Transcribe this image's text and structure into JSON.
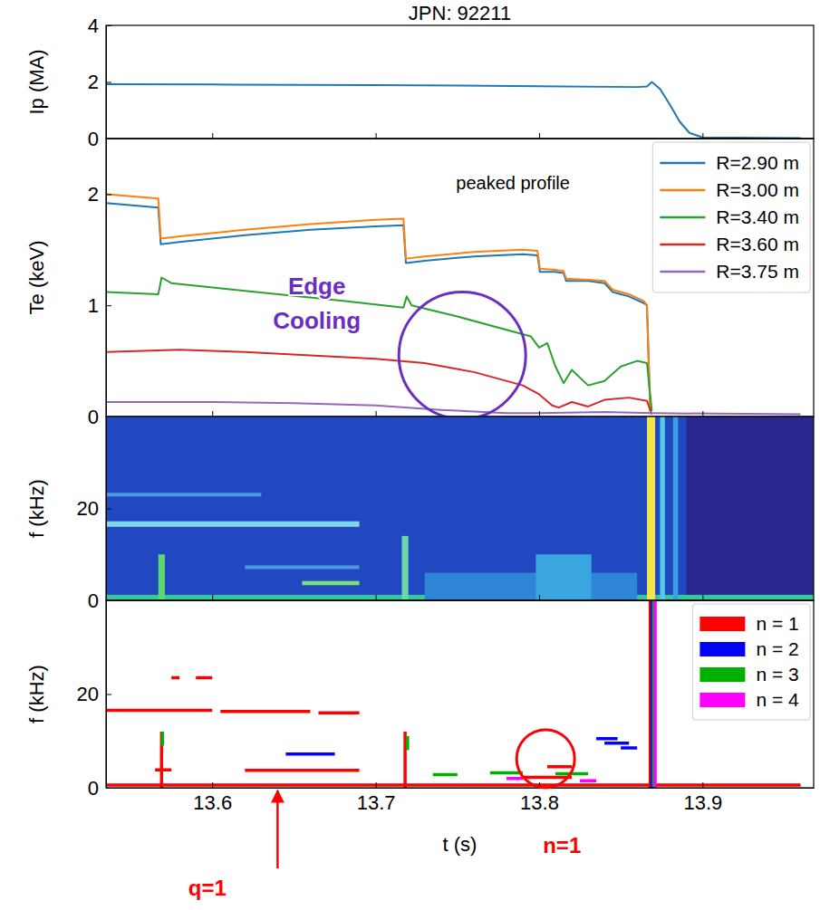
{
  "chart_data": [
    {
      "type": "line",
      "title": "JPN: 92211",
      "y_label": "Ip (MA)",
      "xlim": [
        13.535,
        13.968
      ],
      "ylim": [
        0,
        4
      ],
      "xticks": [
        13.6,
        13.7,
        13.8,
        13.9
      ],
      "yticks": [
        0,
        2,
        4
      ],
      "tick_labels": "y",
      "series": [
        {
          "color": "#1f77b4",
          "x": [
            13.535,
            13.6,
            13.7,
            13.8,
            13.86,
            13.866,
            13.869,
            13.874,
            13.88,
            13.886,
            13.892,
            13.9,
            13.96
          ],
          "values": [
            1.92,
            1.91,
            1.89,
            1.85,
            1.82,
            1.84,
            2.0,
            1.75,
            1.2,
            0.6,
            0.2,
            0.04,
            0.02
          ]
        }
      ]
    },
    {
      "type": "line",
      "y_label": "Te (keV)",
      "xlim": [
        13.535,
        13.968
      ],
      "ylim": [
        0,
        2.5
      ],
      "xticks": [
        13.6,
        13.7,
        13.8,
        13.9
      ],
      "yticks": [
        0,
        1,
        2
      ],
      "tick_labels": "y",
      "legend": "upper right",
      "series": [
        {
          "name": "R=2.90 m",
          "color": "#1f77b4",
          "x": [
            13.535,
            13.567,
            13.5685,
            13.58,
            13.62,
            13.66,
            13.7,
            13.717,
            13.7185,
            13.73,
            13.76,
            13.79,
            13.799,
            13.8005,
            13.81,
            13.815,
            13.8165,
            13.83,
            13.84,
            13.845,
            13.85,
            13.855,
            13.864,
            13.866,
            13.868
          ],
          "values": [
            1.92,
            1.88,
            1.55,
            1.57,
            1.63,
            1.68,
            1.71,
            1.72,
            1.38,
            1.4,
            1.44,
            1.46,
            1.45,
            1.3,
            1.3,
            1.29,
            1.22,
            1.22,
            1.2,
            1.12,
            1.1,
            1.08,
            1.02,
            1.0,
            0.05
          ]
        },
        {
          "name": "R=3.00 m",
          "color": "#ff7f0e",
          "x": [
            13.535,
            13.567,
            13.5685,
            13.58,
            13.62,
            13.66,
            13.7,
            13.717,
            13.7185,
            13.73,
            13.76,
            13.79,
            13.799,
            13.8005,
            13.81,
            13.815,
            13.8165,
            13.83,
            13.84,
            13.845,
            13.85,
            13.855,
            13.864,
            13.866,
            13.868
          ],
          "values": [
            2.0,
            1.96,
            1.6,
            1.62,
            1.68,
            1.73,
            1.77,
            1.78,
            1.42,
            1.44,
            1.48,
            1.5,
            1.49,
            1.33,
            1.32,
            1.31,
            1.24,
            1.23,
            1.22,
            1.14,
            1.12,
            1.1,
            1.04,
            1.0,
            0.05
          ]
        },
        {
          "name": "R=3.40 m",
          "color": "#2ca02c",
          "x": [
            13.535,
            13.567,
            13.569,
            13.575,
            13.62,
            13.68,
            13.717,
            13.719,
            13.722,
            13.75,
            13.78,
            13.795,
            13.8,
            13.805,
            13.81,
            13.815,
            13.82,
            13.83,
            13.84,
            13.85,
            13.86,
            13.866,
            13.869
          ],
          "values": [
            1.12,
            1.1,
            1.25,
            1.2,
            1.13,
            1.04,
            0.98,
            1.08,
            1.0,
            0.9,
            0.78,
            0.72,
            0.62,
            0.66,
            0.45,
            0.3,
            0.42,
            0.28,
            0.32,
            0.45,
            0.5,
            0.48,
            0.05
          ]
        },
        {
          "name": "R=3.60 m",
          "color": "#d62728",
          "x": [
            13.535,
            13.58,
            13.62,
            13.66,
            13.7,
            13.73,
            13.76,
            13.79,
            13.8,
            13.808,
            13.812,
            13.82,
            13.83,
            13.84,
            13.855,
            13.866,
            13.869
          ],
          "values": [
            0.58,
            0.6,
            0.58,
            0.55,
            0.52,
            0.48,
            0.4,
            0.28,
            0.2,
            0.1,
            0.08,
            0.13,
            0.09,
            0.15,
            0.17,
            0.14,
            0.02
          ]
        },
        {
          "name": "R=3.75 m",
          "color": "#9467bd",
          "x": [
            13.535,
            13.6,
            13.65,
            13.7,
            13.74,
            13.78,
            13.8,
            13.84,
            13.87,
            13.96
          ],
          "values": [
            0.13,
            0.13,
            0.12,
            0.1,
            0.06,
            0.03,
            0.03,
            0.04,
            0.03,
            0.02
          ]
        }
      ],
      "annotations": [
        {
          "text": "peaked profile",
          "x": 13.784,
          "y": 2.04
        },
        {
          "text": "Edge Cooling",
          "x": 13.664,
          "y": 1.1,
          "color": "#6a2fc0",
          "marker": "circle",
          "at": [
            13.753,
            0.55
          ]
        }
      ]
    },
    {
      "type": "heatmap",
      "y_label": "f (kHz)",
      "xlim": [
        13.535,
        13.968
      ],
      "ylim": [
        0,
        40
      ],
      "xticks": [
        13.6,
        13.7,
        13.8,
        13.9
      ],
      "yticks": [
        0,
        20
      ],
      "tick_labels": "y",
      "features": [
        {
          "t": [
            13.535,
            13.968
          ],
          "f": [
            0,
            40
          ],
          "color": "#2148c0"
        },
        {
          "t": [
            13.89,
            13.968
          ],
          "f": [
            0,
            40
          ],
          "color": "#2a2890"
        },
        {
          "t": [
            13.535,
            13.968
          ],
          "f": [
            0,
            1.2
          ],
          "color": "#35c89a"
        },
        {
          "t": [
            13.73,
            13.86
          ],
          "f": [
            0,
            6
          ],
          "color": "#2f86d8"
        },
        {
          "t": [
            13.535,
            13.69
          ],
          "f": [
            16,
            17.2
          ],
          "color": "#7fd8e8"
        },
        {
          "t": [
            13.535,
            13.63
          ],
          "f": [
            22.6,
            23.4
          ],
          "color": "#4d98dc"
        },
        {
          "t": [
            13.62,
            13.69
          ],
          "f": [
            6.8,
            7.6
          ],
          "color": "#4d98dc"
        },
        {
          "t": [
            13.655,
            13.69
          ],
          "f": [
            3.3,
            4.2
          ],
          "color": "#7ae07a"
        },
        {
          "t": [
            13.567,
            13.571
          ],
          "f": [
            0,
            10
          ],
          "color": "#5fd870"
        },
        {
          "t": [
            13.716,
            13.72
          ],
          "f": [
            0,
            14
          ],
          "color": "#6ad8a8"
        },
        {
          "t": [
            13.798,
            13.832
          ],
          "f": [
            0,
            10
          ],
          "color": "#3aa6e0"
        },
        {
          "t": [
            13.866,
            13.871
          ],
          "f": [
            0,
            40
          ],
          "color": "#f2e64a"
        },
        {
          "t": [
            13.874,
            13.877
          ],
          "f": [
            0,
            40
          ],
          "color": "#55cce6"
        },
        {
          "t": [
            13.882,
            13.885
          ],
          "f": [
            0,
            40
          ],
          "color": "#3aa0e0"
        }
      ]
    },
    {
      "type": "line",
      "y_label": "f (kHz)",
      "x_label": "t (s)",
      "xlim": [
        13.535,
        13.968
      ],
      "ylim": [
        0,
        40
      ],
      "xticks": [
        13.6,
        13.7,
        13.8,
        13.9
      ],
      "yticks": [
        0,
        20
      ],
      "legend": "upper right",
      "series": [
        {
          "name": "n = 1",
          "color": "#ff0000",
          "x": [
            13.535,
            13.6,
            13.6,
            13.605,
            13.66,
            13.66,
            13.665,
            13.69,
            13.69,
            13.575,
            13.58,
            13.58,
            13.59,
            13.6,
            13.6,
            13.569,
            13.569,
            13.569,
            13.565,
            13.575,
            13.575,
            13.62,
            13.69,
            13.69,
            13.718,
            13.718,
            13.718,
            13.535,
            13.96,
            13.96,
            13.79,
            13.82,
            13.82,
            13.805,
            13.82,
            13.82,
            13.868,
            13.868
          ],
          "values": [
            16.5,
            16.5,
            null,
            16.3,
            16.3,
            null,
            16.0,
            16.0,
            null,
            23.5,
            23.5,
            null,
            23.5,
            23.5,
            null,
            0,
            12,
            null,
            3.8,
            3.8,
            null,
            3.7,
            3.7,
            null,
            0,
            12,
            null,
            0.6,
            0.6,
            null,
            2.2,
            2.2,
            null,
            4.5,
            4.5,
            null,
            0,
            40
          ]
        },
        {
          "name": "n = 2",
          "color": "#0000ff",
          "x": [
            13.645,
            13.675,
            13.675,
            13.835,
            13.848,
            13.848,
            13.84,
            13.855,
            13.855,
            13.85,
            13.86,
            13.86,
            13.869,
            13.869
          ],
          "values": [
            7.2,
            7.2,
            null,
            10.5,
            10.5,
            null,
            9.5,
            9.5,
            null,
            8.5,
            8.5,
            null,
            0,
            40
          ]
        },
        {
          "name": "n = 3",
          "color": "#00b000",
          "x": [
            13.5695,
            13.5695,
            13.5695,
            13.735,
            13.75,
            13.75,
            13.77,
            13.79,
            13.79,
            13.81,
            13.83,
            13.83,
            13.7195,
            13.7195,
            13.7195,
            13.87,
            13.87
          ],
          "values": [
            9,
            12,
            null,
            2.8,
            2.8,
            null,
            3.2,
            3.2,
            null,
            3.0,
            3.0,
            null,
            8,
            11,
            null,
            0,
            40
          ]
        },
        {
          "name": "n = 4",
          "color": "#ff00ff",
          "x": [
            13.78,
            13.79,
            13.79,
            13.825,
            13.835,
            13.835,
            13.871,
            13.871
          ],
          "values": [
            2.0,
            2.0,
            null,
            1.5,
            1.5,
            null,
            0,
            40
          ]
        }
      ],
      "annotations": [
        {
          "text": "n=1",
          "x": 13.814,
          "y": -14,
          "color": "#ff0000",
          "marker": "circle",
          "at": [
            13.804,
            6.2
          ]
        },
        {
          "text": "q=1",
          "x": 13.597,
          "y": -23,
          "color": "#ff0000",
          "marker": "arrow",
          "at": [
            13.64,
            -0.6
          ]
        }
      ]
    }
  ]
}
